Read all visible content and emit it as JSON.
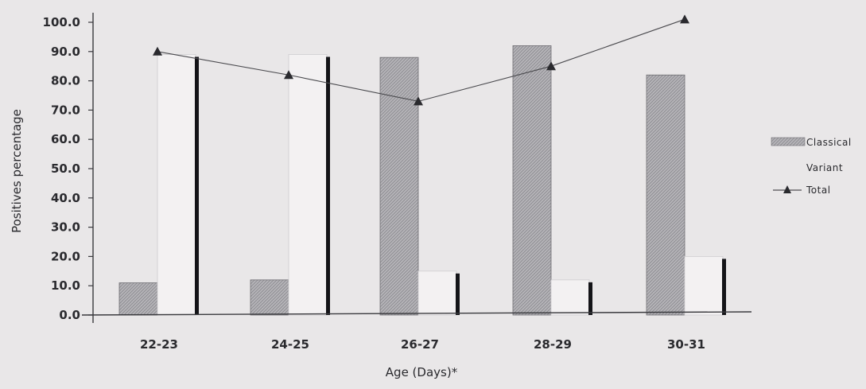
{
  "chart_data": {
    "type": "bar",
    "xlabel": "Age (Days)*",
    "ylabel": "Positives percentage",
    "ylim": [
      0,
      100
    ],
    "yticks": [
      "0.0",
      "10.0",
      "20.0",
      "30.0",
      "40.0",
      "50.0",
      "60.0",
      "70.0",
      "80.0",
      "90.0",
      "100.0"
    ],
    "categories": [
      "22-23",
      "24-25",
      "26-27",
      "28-29",
      "30-31"
    ],
    "series": [
      {
        "name": "Classical",
        "kind": "bar",
        "pattern": "hatched",
        "color": "#a9a9ae",
        "values": [
          11,
          12,
          88,
          92,
          82
        ]
      },
      {
        "name": "Variant",
        "kind": "bar",
        "pattern": "plain",
        "color": "#f3f1f2",
        "values": [
          89,
          89,
          15,
          12,
          20
        ]
      },
      {
        "name": "Total",
        "kind": "line",
        "marker": "triangle",
        "color": "#2a2a2e",
        "values": [
          90,
          82,
          73,
          85,
          101
        ]
      }
    ],
    "legend_position": "right",
    "grid": false
  }
}
